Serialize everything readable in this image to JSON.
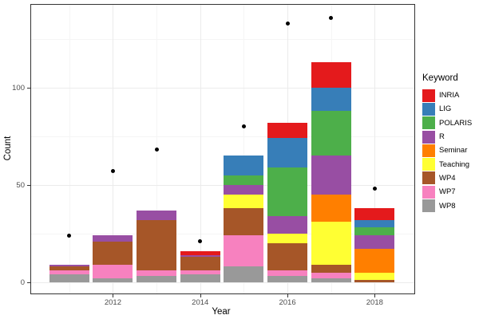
{
  "chart_data": {
    "type": "bar",
    "stacked": true,
    "title": "",
    "xlabel": "Year",
    "ylabel": "Count",
    "categories": [
      2011,
      2012,
      2013,
      2014,
      2015,
      2016,
      2017,
      2018
    ],
    "x_tick_labels": [
      "2012",
      "2014",
      "2016",
      "2018"
    ],
    "x_tick_years": [
      2012,
      2014,
      2016,
      2018
    ],
    "y_ticks": [
      0,
      50,
      100
    ],
    "y_minor_ticks": [
      25,
      75,
      125
    ],
    "x_minor_years": [
      2011,
      2013,
      2015,
      2017
    ],
    "ylim": [
      -5.7,
      142.4
    ],
    "grid": true,
    "legend": {
      "title": "Keyword",
      "position": "right"
    },
    "series": [
      {
        "name": "INRIA",
        "color": "#E41A1C",
        "values": [
          0,
          0,
          0,
          2,
          0,
          8,
          13,
          6
        ]
      },
      {
        "name": "LIG",
        "color": "#377EB8",
        "values": [
          0,
          0,
          0,
          0,
          10,
          15,
          12,
          4
        ]
      },
      {
        "name": "POLARIS",
        "color": "#4DAF4A",
        "values": [
          0,
          0,
          0,
          0,
          5,
          25,
          23,
          4
        ]
      },
      {
        "name": "R",
        "color": "#984EA3",
        "values": [
          1,
          3,
          5,
          1,
          5,
          9,
          20,
          7
        ]
      },
      {
        "name": "Seminar",
        "color": "#FF7F00",
        "values": [
          0,
          0,
          0,
          0,
          0,
          0,
          14,
          12
        ]
      },
      {
        "name": "Teaching",
        "color": "#FFFF33",
        "values": [
          0,
          0,
          0,
          0,
          7,
          5,
          22,
          4
        ]
      },
      {
        "name": "WP4",
        "color": "#A65628",
        "values": [
          2,
          12,
          26,
          7,
          14,
          14,
          4,
          1
        ]
      },
      {
        "name": "WP7",
        "color": "#F781BF",
        "values": [
          2,
          7,
          3,
          2,
          16,
          3,
          3,
          0
        ]
      },
      {
        "name": "WP8",
        "color": "#999999",
        "values": [
          4,
          2,
          3,
          4,
          8,
          3,
          2,
          0
        ]
      }
    ],
    "bar_totals": [
      9,
      24,
      37,
      16,
      65,
      82,
      113,
      38
    ],
    "points_overlay": {
      "name": "points",
      "color": "#000000",
      "values": [
        24,
        57,
        68,
        21,
        80,
        133,
        136,
        48
      ]
    },
    "colors": {
      "grid_major": "#EBEBEB",
      "grid_minor": "#F5F5F5",
      "panel_border": "#333333",
      "axis_text": "#4D4D4D",
      "tick": "#333333",
      "background": "#FFFFFF"
    }
  }
}
